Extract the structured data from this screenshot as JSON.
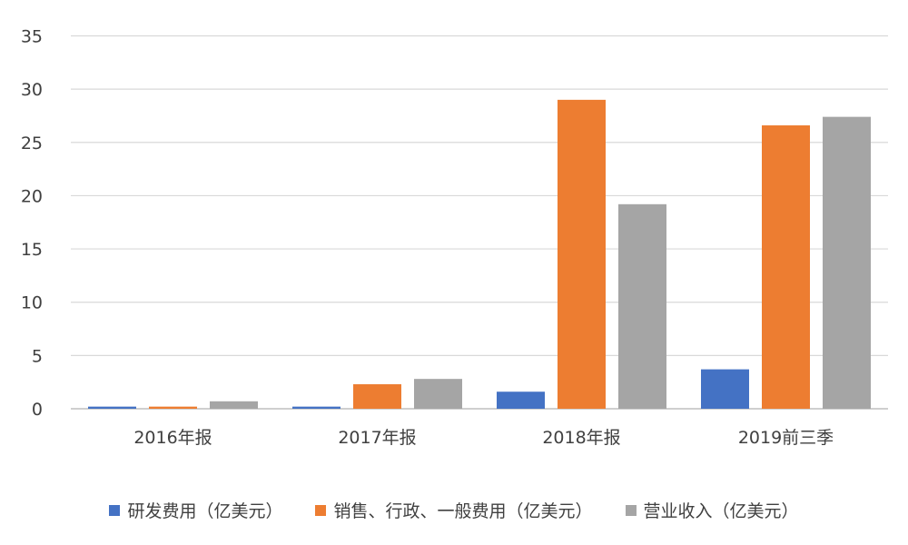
{
  "chart_data": {
    "type": "bar",
    "categories": [
      "2016年报",
      "2017年报",
      "2018年报",
      "2019前三季"
    ],
    "series": [
      {
        "name": "研发费用（亿美元）",
        "color": "#4472C4",
        "values": [
          0.2,
          0.2,
          1.6,
          3.7
        ]
      },
      {
        "name": "销售、行政、一般费用（亿美元）",
        "color": "#ED7D31",
        "values": [
          0.2,
          2.3,
          29.0,
          26.6
        ]
      },
      {
        "name": "营业收入（亿美元）",
        "color": "#A5A5A5",
        "values": [
          0.7,
          2.8,
          19.2,
          27.4
        ]
      }
    ],
    "ylim": [
      0,
      35
    ],
    "yticks": [
      "0",
      "5",
      "10",
      "15",
      "20",
      "25",
      "30",
      "35"
    ],
    "grid": true,
    "legend_position": "bottom"
  }
}
